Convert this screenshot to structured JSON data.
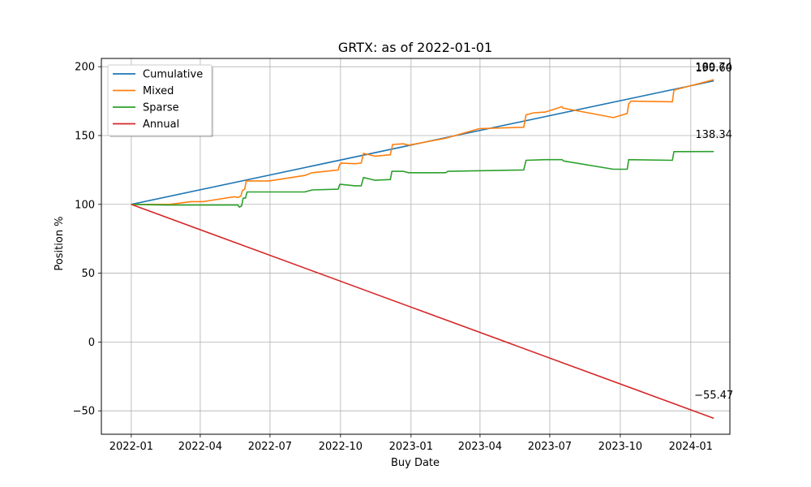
{
  "chart_data": {
    "type": "line",
    "title": "GRTX: as of 2022-01-01",
    "xlabel": "Buy Date",
    "ylabel": "Position %",
    "x_range": [
      "2021-11-23",
      "2024-02-21"
    ],
    "ylim": [
      -67,
      206
    ],
    "x_ticks": [
      "2022-01",
      "2022-04",
      "2022-07",
      "2022-10",
      "2023-01",
      "2023-04",
      "2023-07",
      "2023-10",
      "2024-01"
    ],
    "y_ticks": [
      -50,
      0,
      50,
      100,
      150,
      200
    ],
    "grid": true,
    "legend_position": "top-left",
    "series": [
      {
        "name": "Cumulative",
        "color": "#1f77b4",
        "points": [
          [
            "2022-01-01",
            100
          ],
          [
            "2024-01-31",
            189.74
          ]
        ]
      },
      {
        "name": "Mixed",
        "color": "#ff7f0e",
        "points": [
          [
            "2022-01-01",
            100
          ],
          [
            "2022-02-20",
            100
          ],
          [
            "2022-03-20",
            102
          ],
          [
            "2022-04-05",
            102
          ],
          [
            "2022-05-15",
            105.5
          ],
          [
            "2022-05-20",
            105
          ],
          [
            "2022-05-24",
            106
          ],
          [
            "2022-05-26",
            110
          ],
          [
            "2022-05-29",
            111
          ],
          [
            "2022-05-31",
            117
          ],
          [
            "2022-06-30",
            117
          ],
          [
            "2022-08-15",
            121
          ],
          [
            "2022-08-25",
            123
          ],
          [
            "2022-09-28",
            125
          ],
          [
            "2022-09-30",
            129
          ],
          [
            "2022-10-02",
            130
          ],
          [
            "2022-10-20",
            129.5
          ],
          [
            "2022-10-28",
            130
          ],
          [
            "2022-10-31",
            137
          ],
          [
            "2022-11-15",
            135
          ],
          [
            "2022-12-05",
            136
          ],
          [
            "2022-12-08",
            143.5
          ],
          [
            "2022-12-22",
            144
          ],
          [
            "2022-12-29",
            143
          ],
          [
            "2023-02-15",
            148
          ],
          [
            "2023-03-31",
            155
          ],
          [
            "2023-05-28",
            156
          ],
          [
            "2023-05-31",
            165
          ],
          [
            "2023-06-10",
            166.5
          ],
          [
            "2023-06-25",
            167
          ],
          [
            "2023-07-17",
            171
          ],
          [
            "2023-07-18",
            170
          ],
          [
            "2023-09-22",
            163
          ],
          [
            "2023-10-10",
            166
          ],
          [
            "2023-10-12",
            173
          ],
          [
            "2023-10-15",
            175
          ],
          [
            "2023-12-08",
            174.5
          ],
          [
            "2023-12-10",
            183
          ],
          [
            "2024-01-31",
            190.6
          ]
        ]
      },
      {
        "name": "Sparse",
        "color": "#2ca02c",
        "points": [
          [
            "2022-01-01",
            100
          ],
          [
            "2022-02-15",
            99.5
          ],
          [
            "2022-05-20",
            99.5
          ],
          [
            "2022-05-22",
            98
          ],
          [
            "2022-05-25",
            99
          ],
          [
            "2022-05-27",
            104.5
          ],
          [
            "2022-05-30",
            104.5
          ],
          [
            "2022-06-01",
            109
          ],
          [
            "2022-08-15",
            109
          ],
          [
            "2022-08-25",
            110.5
          ],
          [
            "2022-09-28",
            111
          ],
          [
            "2022-09-30",
            114.5
          ],
          [
            "2022-10-02",
            114.5
          ],
          [
            "2022-10-20",
            113.5
          ],
          [
            "2022-10-28",
            113.5
          ],
          [
            "2022-10-31",
            119.5
          ],
          [
            "2022-11-15",
            117.5
          ],
          [
            "2022-12-05",
            118
          ],
          [
            "2022-12-07",
            124
          ],
          [
            "2022-12-22",
            124
          ],
          [
            "2022-12-29",
            123
          ],
          [
            "2023-02-15",
            123
          ],
          [
            "2023-02-18",
            124
          ],
          [
            "2023-05-28",
            125
          ],
          [
            "2023-05-31",
            132
          ],
          [
            "2023-06-25",
            132.5
          ],
          [
            "2023-07-17",
            132.5
          ],
          [
            "2023-07-19",
            131.5
          ],
          [
            "2023-09-22",
            125.5
          ],
          [
            "2023-10-10",
            125.5
          ],
          [
            "2023-10-12",
            132.5
          ],
          [
            "2023-12-08",
            132
          ],
          [
            "2023-12-10",
            138.3
          ],
          [
            "2024-01-31",
            138.34
          ]
        ]
      },
      {
        "name": "Annual",
        "color": "#d62728",
        "points": [
          [
            "2022-01-01",
            100
          ],
          [
            "2024-01-31",
            -55.47
          ]
        ]
      }
    ],
    "annotations": [
      {
        "text": "189.74",
        "x": "2024-01-31",
        "y": 197.2
      },
      {
        "text": "190.60",
        "x": "2024-01-31",
        "y": 196.6
      },
      {
        "text": "138.34",
        "x": "2024-01-31",
        "y": 148.3
      },
      {
        "text": "-55.47",
        "x": "2024-01-31",
        "y": -41.2
      }
    ]
  }
}
